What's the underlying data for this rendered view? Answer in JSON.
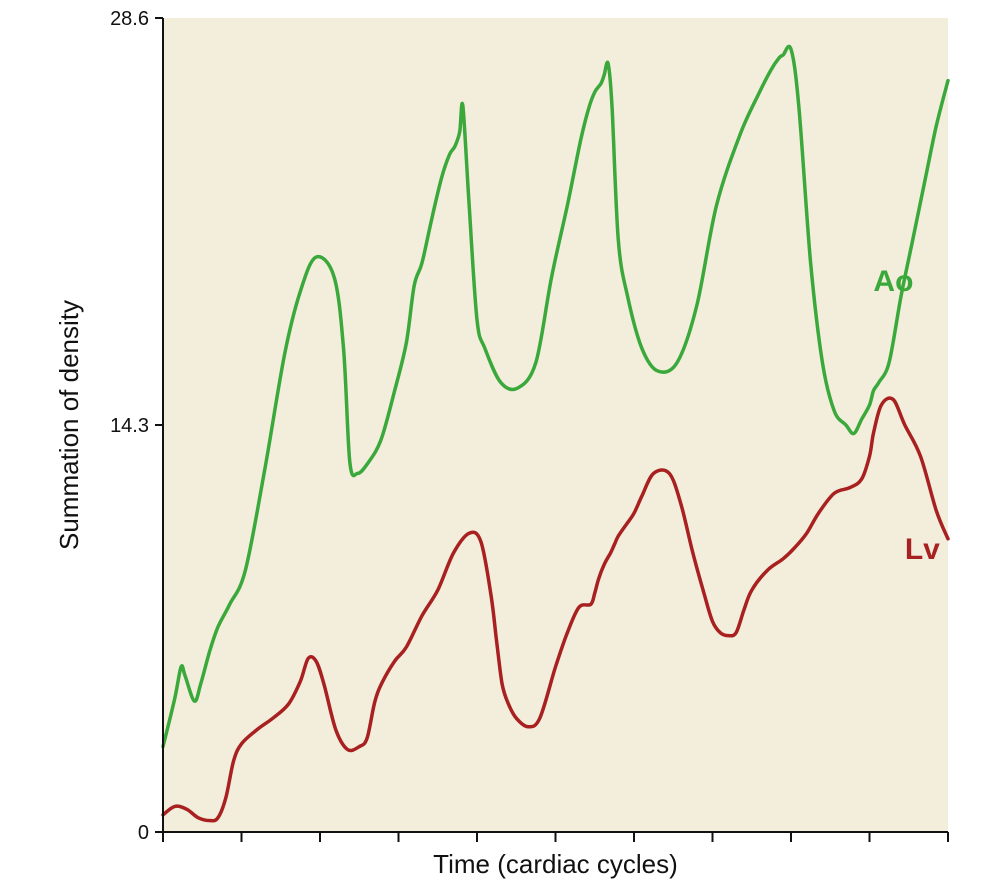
{
  "chart_data": {
    "type": "line",
    "title": "",
    "xlabel": "Time (cardiac cycles)",
    "ylabel": "Summation of density",
    "y_ticks": [
      {
        "value": 0,
        "label": "0"
      },
      {
        "value": 14.3,
        "label": "14.3"
      },
      {
        "value": 28.6,
        "label": "28.6"
      }
    ],
    "ylim": [
      0,
      28.6
    ],
    "xlim": [
      0,
      10
    ],
    "x_ticks": [
      0,
      1,
      2,
      3,
      4,
      5,
      6,
      7,
      8,
      9,
      10
    ],
    "grid": false,
    "plot_background": "#f2eedb",
    "series": [
      {
        "name": "Ao",
        "color": "#3aa83a",
        "x": [
          0,
          0.15,
          0.23,
          0.28,
          0.4,
          0.48,
          0.6,
          0.7,
          0.85,
          1.05,
          1.3,
          1.55,
          1.75,
          1.95,
          2.18,
          2.3,
          2.38,
          2.48,
          2.62,
          2.78,
          2.95,
          3.1,
          3.2,
          3.3,
          3.42,
          3.55,
          3.65,
          3.72,
          3.78,
          3.82,
          3.9,
          4.0,
          4.1,
          4.3,
          4.52,
          4.75,
          4.95,
          5.15,
          5.32,
          5.42,
          5.5,
          5.58,
          5.62,
          5.67,
          5.72,
          5.8,
          5.92,
          6.1,
          6.3,
          6.55,
          6.8,
          7.05,
          7.35,
          7.6,
          7.75,
          7.85,
          7.9,
          8.0,
          8.1,
          8.25,
          8.4,
          8.55,
          8.7,
          8.8,
          8.9,
          9.0,
          9.05,
          9.12,
          9.25,
          9.4,
          9.55,
          9.7,
          9.85,
          10.0
        ],
        "values": [
          3.0,
          4.7,
          5.8,
          5.5,
          4.6,
          5.2,
          6.4,
          7.2,
          8.0,
          9.2,
          12.8,
          16.8,
          19.0,
          20.2,
          19.5,
          17.0,
          13.0,
          12.6,
          13.0,
          13.8,
          15.5,
          17.2,
          19.2,
          20.0,
          21.5,
          23.0,
          23.8,
          24.1,
          24.6,
          25.5,
          22.0,
          18.0,
          17.0,
          15.8,
          15.6,
          16.5,
          19.5,
          22.0,
          24.3,
          25.4,
          26.0,
          26.3,
          26.6,
          27.0,
          25.5,
          20.8,
          18.8,
          17.0,
          16.2,
          16.5,
          18.5,
          22.0,
          24.5,
          26.0,
          26.8,
          27.2,
          27.3,
          27.5,
          25.5,
          20.0,
          16.5,
          14.8,
          14.3,
          14.0,
          14.5,
          15.0,
          15.5,
          15.8,
          16.5,
          18.8,
          20.8,
          22.8,
          24.8,
          26.4
        ]
      },
      {
        "name": "Lv",
        "color": "#a82020",
        "x": [
          0,
          0.15,
          0.3,
          0.45,
          0.6,
          0.7,
          0.8,
          0.9,
          1.0,
          1.2,
          1.4,
          1.6,
          1.75,
          1.85,
          1.95,
          2.05,
          2.2,
          2.35,
          2.5,
          2.6,
          2.7,
          2.8,
          2.95,
          3.1,
          3.3,
          3.5,
          3.7,
          3.9,
          4.05,
          4.18,
          4.25,
          4.32,
          4.4,
          4.5,
          4.65,
          4.8,
          5.0,
          5.15,
          5.3,
          5.45,
          5.5,
          5.55,
          5.62,
          5.7,
          5.75,
          5.8,
          5.9,
          6.0,
          6.1,
          6.25,
          6.45,
          6.6,
          6.75,
          6.9,
          7.0,
          7.1,
          7.2,
          7.3,
          7.4,
          7.5,
          7.7,
          7.9,
          8.05,
          8.2,
          8.35,
          8.55,
          8.75,
          8.9,
          9.0,
          9.05,
          9.15,
          9.3,
          9.45,
          9.65,
          9.85,
          10.0
        ],
        "values": [
          0.6,
          0.9,
          0.8,
          0.5,
          0.4,
          0.5,
          1.2,
          2.5,
          3.1,
          3.6,
          4.0,
          4.5,
          5.3,
          6.1,
          6.0,
          5.2,
          3.6,
          2.9,
          3.0,
          3.3,
          4.6,
          5.3,
          6.0,
          6.5,
          7.6,
          8.5,
          9.8,
          10.5,
          10.2,
          8.3,
          6.7,
          5.2,
          4.5,
          4.0,
          3.7,
          4.0,
          5.8,
          7.0,
          7.9,
          8.0,
          8.4,
          8.9,
          9.4,
          9.8,
          10.1,
          10.4,
          10.8,
          11.2,
          11.8,
          12.6,
          12.6,
          11.5,
          9.8,
          8.3,
          7.4,
          7.0,
          6.9,
          7.0,
          7.8,
          8.5,
          9.2,
          9.6,
          10.0,
          10.5,
          11.2,
          11.9,
          12.1,
          12.4,
          13.2,
          14.0,
          15.0,
          15.2,
          14.3,
          13.2,
          11.3,
          10.3
        ]
      }
    ],
    "labels": [
      {
        "series": "Ao",
        "text": "Ao"
      },
      {
        "series": "Lv",
        "text": "Lv"
      }
    ]
  }
}
